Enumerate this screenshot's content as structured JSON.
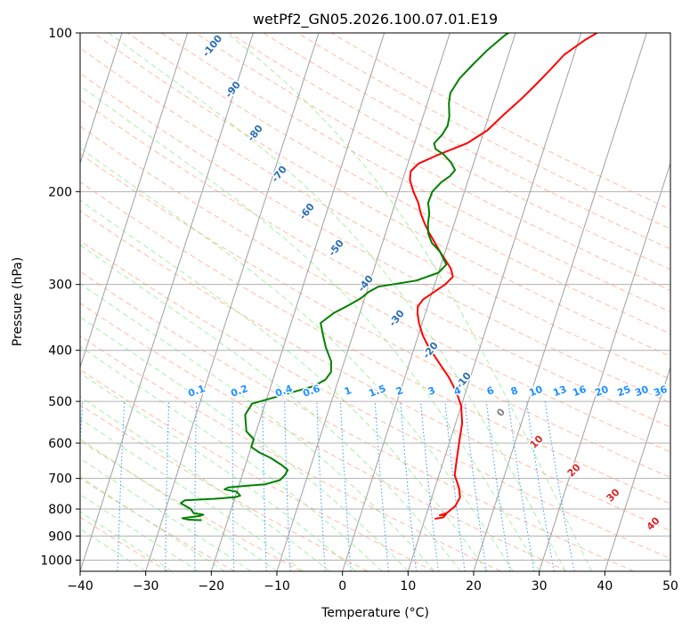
{
  "chart_data": {
    "type": "line",
    "title": "wetPf2_GN05.2026.100.07.01.E19",
    "xlabel": "Temperature (°C)",
    "ylabel": "Pressure (hPa)",
    "xlim": [
      -40,
      50
    ],
    "ylim": [
      1050,
      100
    ],
    "y_scale": "log",
    "x_ticks": [
      "−40",
      "−30",
      "−20",
      "−10",
      "0",
      "10",
      "20",
      "30",
      "40",
      "50"
    ],
    "y_ticks": [
      {
        "p": 100,
        "label": "100"
      },
      {
        "p": 200,
        "label": "200"
      },
      {
        "p": 300,
        "label": "300"
      },
      {
        "p": 400,
        "label": "400"
      },
      {
        "p": 500,
        "label": "500"
      },
      {
        "p": 600,
        "label": "600"
      },
      {
        "p": 700,
        "label": "700"
      },
      {
        "p": 800,
        "label": "800"
      },
      {
        "p": 900,
        "label": "900"
      },
      {
        "p": 1000,
        "label": "1000"
      }
    ],
    "grid": true,
    "colors": {
      "temperature": "#ff0000",
      "dewpoint": "#008000",
      "isotherm": "#a0a0a0",
      "dry_adiabat": "#ffa07a",
      "moist_adiabat": "#90ee90",
      "mixing_ratio": "#1e90ff",
      "isotherm_label": "#2a6fb0",
      "dry_label": "#d62728",
      "moist_label": "#808080",
      "mixing_label": "#1e90ff"
    },
    "series": [
      {
        "key": "temperature",
        "points": [
          [
            11.5,
            835
          ],
          [
            12.7,
            830
          ],
          [
            13.0,
            820
          ],
          [
            12.1,
            822
          ],
          [
            13.0,
            815
          ],
          [
            14.0,
            790
          ],
          [
            14.3,
            760
          ],
          [
            13.7,
            730
          ],
          [
            12.9,
            705
          ],
          [
            12.4,
            690
          ],
          [
            12.0,
            650
          ],
          [
            11.5,
            600
          ],
          [
            11.0,
            550
          ],
          [
            10.0,
            510
          ],
          [
            8.6,
            480
          ],
          [
            6.7,
            450
          ],
          [
            4.3,
            420
          ],
          [
            2.2,
            395
          ],
          [
            0.7,
            375
          ],
          [
            -0.5,
            355
          ],
          [
            -1.2,
            340
          ],
          [
            -1.5,
            330
          ],
          [
            -1.0,
            320
          ],
          [
            0.3,
            310
          ],
          [
            1.6,
            300
          ],
          [
            2.4,
            290
          ],
          [
            1.7,
            280
          ],
          [
            0.5,
            270
          ],
          [
            -0.8,
            260
          ],
          [
            -2.0,
            250
          ],
          [
            -3.3,
            240
          ],
          [
            -4.5,
            230
          ],
          [
            -5.6,
            220
          ],
          [
            -6.5,
            210
          ],
          [
            -7.8,
            200
          ],
          [
            -8.9,
            190
          ],
          [
            -9.2,
            183
          ],
          [
            -8.4,
            177
          ],
          [
            -5.7,
            170
          ],
          [
            -2.0,
            162
          ],
          [
            0.5,
            153
          ],
          [
            2.2,
            143
          ],
          [
            4.0,
            134
          ],
          [
            5.5,
            126
          ],
          [
            7.0,
            118
          ],
          [
            8.5,
            110
          ],
          [
            11.0,
            103
          ],
          [
            12.5,
            99.8
          ]
        ]
      },
      {
        "key": "dewpoint",
        "points": [
          [
            -24.0,
            840
          ],
          [
            -26.0,
            838
          ],
          [
            -27.0,
            833
          ],
          [
            -24.5,
            825
          ],
          [
            -24.0,
            820
          ],
          [
            -25.5,
            815
          ],
          [
            -26.2,
            800
          ],
          [
            -28.0,
            780
          ],
          [
            -27.5,
            770
          ],
          [
            -23.0,
            765
          ],
          [
            -20.0,
            760
          ],
          [
            -19.3,
            755
          ],
          [
            -20.0,
            742
          ],
          [
            -22.0,
            734
          ],
          [
            -21.5,
            728
          ],
          [
            -19.0,
            723
          ],
          [
            -16.0,
            718
          ],
          [
            -14.0,
            705
          ],
          [
            -13.5,
            690
          ],
          [
            -13.3,
            675
          ],
          [
            -14.5,
            660
          ],
          [
            -16.5,
            640
          ],
          [
            -18.5,
            625
          ],
          [
            -20.0,
            610
          ],
          [
            -20.0,
            590
          ],
          [
            -21.5,
            570
          ],
          [
            -22.0,
            550
          ],
          [
            -22.5,
            530
          ],
          [
            -22.0,
            505
          ],
          [
            -17.5,
            485
          ],
          [
            -13.5,
            468
          ],
          [
            -12.0,
            455
          ],
          [
            -11.5,
            440
          ],
          [
            -12.0,
            420
          ],
          [
            -13.5,
            395
          ],
          [
            -14.5,
            375
          ],
          [
            -15.5,
            355
          ],
          [
            -14.0,
            340
          ],
          [
            -12.0,
            328
          ],
          [
            -10.5,
            318
          ],
          [
            -9.7,
            310
          ],
          [
            -8.5,
            303
          ],
          [
            -3.0,
            295
          ],
          [
            0.0,
            285
          ],
          [
            0.8,
            275
          ],
          [
            -0.8,
            260
          ],
          [
            -2.5,
            250
          ],
          [
            -3.5,
            240
          ],
          [
            -4.0,
            230
          ],
          [
            -4.3,
            220
          ],
          [
            -5.0,
            210
          ],
          [
            -4.9,
            200
          ],
          [
            -4.0,
            192
          ],
          [
            -3.0,
            187
          ],
          [
            -2.5,
            182
          ],
          [
            -3.5,
            176
          ],
          [
            -5.0,
            170
          ],
          [
            -6.5,
            166
          ],
          [
            -7.0,
            162
          ],
          [
            -6.2,
            156
          ],
          [
            -5.8,
            150
          ],
          [
            -6.0,
            144
          ],
          [
            -6.7,
            136
          ],
          [
            -7.0,
            130
          ],
          [
            -6.3,
            122
          ],
          [
            -5.0,
            115
          ],
          [
            -3.5,
            108
          ],
          [
            -1.5,
            101
          ],
          [
            -1.0,
            99.8
          ]
        ]
      }
    ],
    "isotherm_labels": [
      "-100",
      "-90",
      "-80",
      "-70",
      "-60",
      "-50",
      "-40",
      "-30",
      "-20",
      "-10"
    ],
    "dry_adiabat_labels": [
      "0",
      "10",
      "20",
      "30",
      "40"
    ],
    "mixing_ratio_labels": [
      "0.1",
      "0.2",
      "0.4",
      "0.6",
      "1",
      "1.5",
      "2",
      "3",
      "4",
      "6",
      "8",
      "10",
      "13",
      "16",
      "20",
      "25",
      "30",
      "36"
    ]
  }
}
